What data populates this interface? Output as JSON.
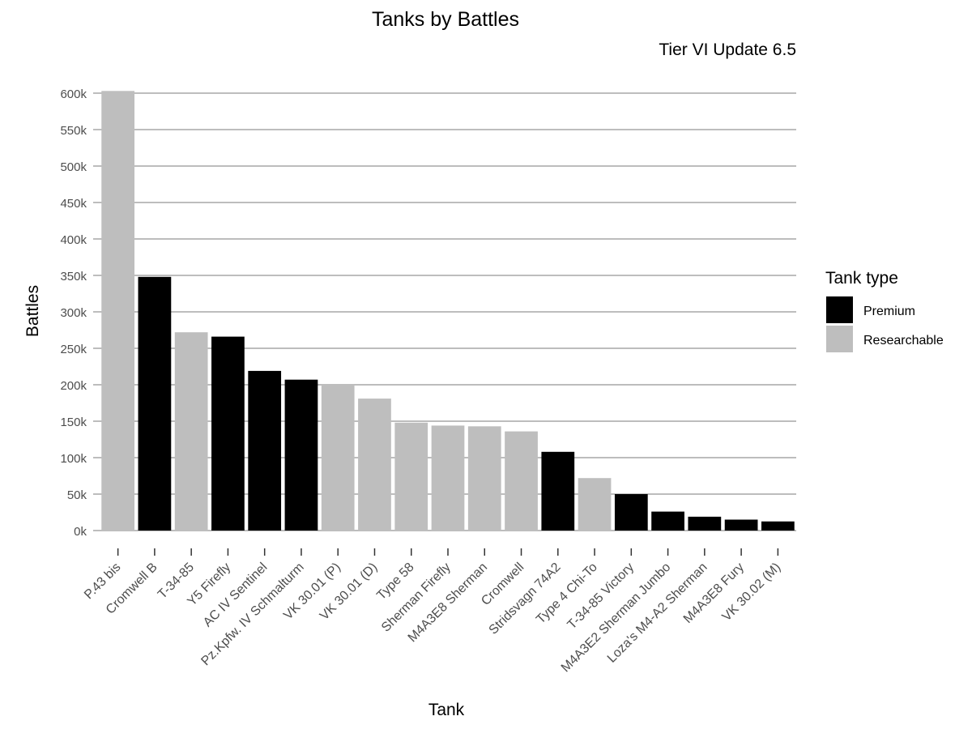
{
  "chart_data": {
    "type": "bar",
    "title": "Tanks by Battles",
    "subtitle": "Tier VI Update 6.5",
    "xlabel": "Tank",
    "ylabel": "Battles",
    "ylim": [
      0,
      600000
    ],
    "y_ticks": [
      0,
      50000,
      100000,
      150000,
      200000,
      250000,
      300000,
      350000,
      400000,
      450000,
      500000,
      550000,
      600000
    ],
    "y_tick_labels": [
      "0k",
      "50k",
      "100k",
      "150k",
      "200k",
      "250k",
      "300k",
      "350k",
      "400k",
      "450k",
      "500k",
      "550k",
      "600k"
    ],
    "grid": true,
    "legend_position": "right",
    "legend": {
      "title": "Tank type",
      "entries": [
        {
          "label": "Premium",
          "color": "#000000"
        },
        {
          "label": "Researchable",
          "color": "#bebebe"
        }
      ]
    },
    "bars": [
      {
        "category": "P.43 bis",
        "value": 603000,
        "type": "Researchable"
      },
      {
        "category": "Cromwell B",
        "value": 348000,
        "type": "Premium"
      },
      {
        "category": "T-34-85",
        "value": 272000,
        "type": "Researchable"
      },
      {
        "category": "Y5 Firefly",
        "value": 266000,
        "type": "Premium"
      },
      {
        "category": "AC IV Sentinel",
        "value": 219000,
        "type": "Premium"
      },
      {
        "category": "Pz.Kpfw. IV Schmalturm",
        "value": 207000,
        "type": "Premium"
      },
      {
        "category": "VK 30.01 (P)",
        "value": 201000,
        "type": "Researchable"
      },
      {
        "category": "VK 30.01 (D)",
        "value": 181000,
        "type": "Researchable"
      },
      {
        "category": "Type 58",
        "value": 148000,
        "type": "Researchable"
      },
      {
        "category": "Sherman Firefly",
        "value": 144000,
        "type": "Researchable"
      },
      {
        "category": "M4A3E8 Sherman",
        "value": 143000,
        "type": "Researchable"
      },
      {
        "category": "Cromwell",
        "value": 136000,
        "type": "Researchable"
      },
      {
        "category": "Stridsvagn 74A2",
        "value": 108000,
        "type": "Premium"
      },
      {
        "category": "Type 4 Chi-To",
        "value": 72000,
        "type": "Researchable"
      },
      {
        "category": "T-34-85 Victory",
        "value": 50000,
        "type": "Premium"
      },
      {
        "category": "M4A3E2 Sherman Jumbo",
        "value": 26000,
        "type": "Premium"
      },
      {
        "category": "Loza's M4-A2 Sherman",
        "value": 19000,
        "type": "Premium"
      },
      {
        "category": "M4A3E8 Fury",
        "value": 15000,
        "type": "Premium"
      },
      {
        "category": "VK 30.02 (M)",
        "value": 12500,
        "type": "Premium"
      }
    ]
  }
}
